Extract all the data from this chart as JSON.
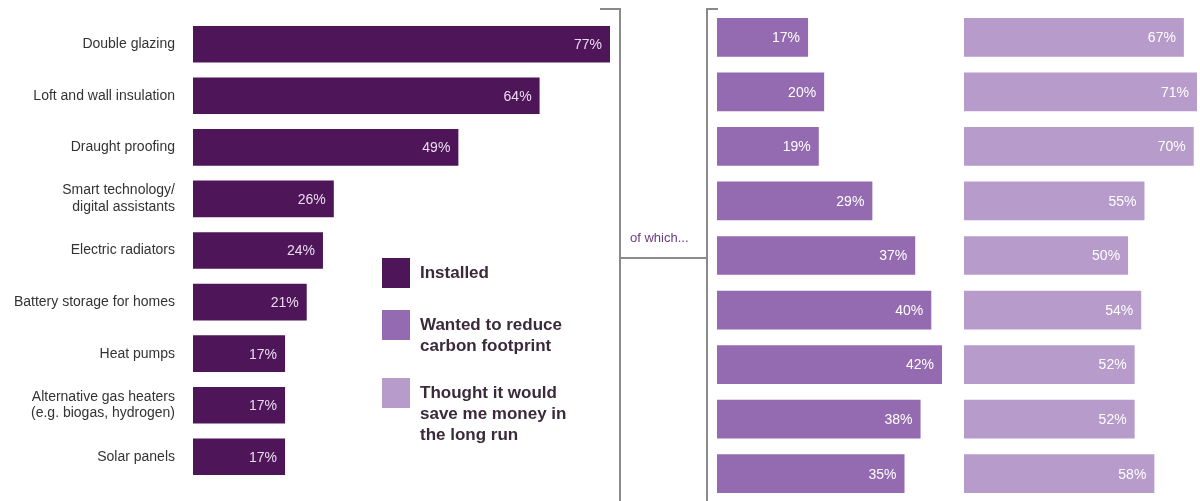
{
  "chart_data": [
    {
      "type": "bar",
      "orientation": "horizontal",
      "categories": [
        "Double glazing",
        "Loft and wall insulation",
        "Draught proofing",
        "Smart technology/\ndigital assistants",
        "Electric radiators",
        "Battery storage for homes",
        "Heat pumps",
        "Alternative gas heaters\n(e.g. biogas, hydrogen)",
        "Solar panels"
      ],
      "series": [
        {
          "name": "Installed",
          "color": "#4e1558",
          "values": [
            77,
            64,
            49,
            26,
            24,
            21,
            17,
            17,
            17
          ],
          "value_labels": [
            "77%",
            "64%",
            "49%",
            "26%",
            "24%",
            "21%",
            "17%",
            "17%",
            "17%"
          ]
        }
      ],
      "xlim": [
        0,
        77
      ],
      "tick_labels": "y",
      "legend": "bottom right"
    },
    {
      "type": "bar",
      "orientation": "horizontal",
      "categories": [
        null,
        null,
        null,
        null,
        null,
        null,
        null,
        null,
        null
      ],
      "series": [
        {
          "name": "Wanted to reduce carbon footprint",
          "color": "#946ab0",
          "values": [
            17,
            20,
            19,
            29,
            37,
            40,
            42,
            38,
            35
          ],
          "value_labels": [
            "17%",
            "20%",
            "19%",
            "29%",
            "37%",
            "40%",
            "42%",
            "38%",
            "35%"
          ]
        }
      ],
      "xlim": [
        0,
        42
      ],
      "tick_labels": false,
      "legend": "left",
      "annotations": [
        "of which..."
      ]
    },
    {
      "type": "bar",
      "orientation": "horizontal",
      "categories": [
        null,
        null,
        null,
        null,
        null,
        null,
        null,
        null,
        null
      ],
      "series": [
        {
          "name": "Thought it would save me money in the long run",
          "color": "#b79bcb",
          "values": [
            67,
            71,
            70,
            55,
            50,
            54,
            52,
            52,
            58
          ],
          "value_labels": [
            "67%",
            "71%",
            "70%",
            "55%",
            "50%",
            "54%",
            "52%",
            "52%",
            "58%"
          ]
        }
      ],
      "xlim": [
        0,
        71
      ],
      "tick_labels": false,
      "legend": "left"
    }
  ]
}
